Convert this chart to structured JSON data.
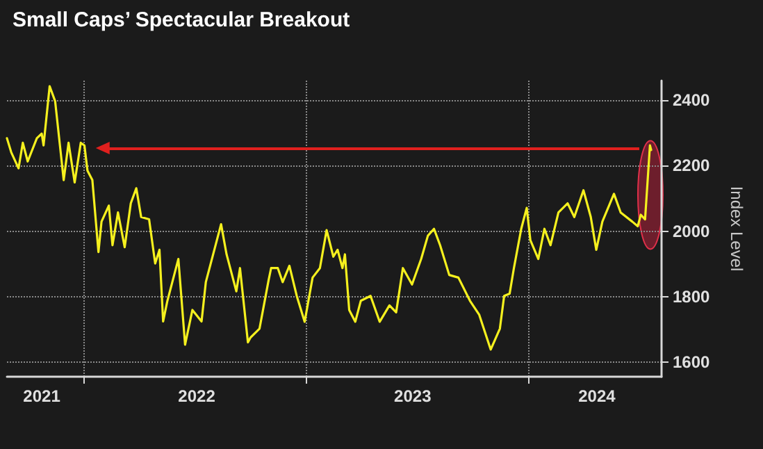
{
  "chart_data": {
    "type": "line",
    "title": "Small Caps’ Spectacular Breakout",
    "ylabel": "Index Level",
    "x": [
      "2021-08-29",
      "2021-09-05",
      "2021-09-17",
      "2021-09-24",
      "2021-10-02",
      "2021-10-17",
      "2021-10-25",
      "2021-10-28",
      "2021-11-07",
      "2021-11-16",
      "2021-11-30",
      "2021-12-08",
      "2021-12-18",
      "2021-12-28",
      "2022-01-03",
      "2022-01-08",
      "2022-01-16",
      "2022-01-26",
      "2022-01-31",
      "2022-02-12",
      "2022-02-18",
      "2022-02-27",
      "2022-03-10",
      "2022-03-20",
      "2022-03-29",
      "2022-04-06",
      "2022-04-19",
      "2022-04-29",
      "2022-05-06",
      "2022-05-12",
      "2022-05-19",
      "2022-06-06",
      "2022-06-17",
      "2022-06-29",
      "2022-07-14",
      "2022-07-21",
      "2022-08-15",
      "2022-08-24",
      "2022-09-09",
      "2022-09-15",
      "2022-09-28",
      "2022-10-02",
      "2022-10-17",
      "2022-11-01",
      "2022-11-05",
      "2022-11-16",
      "2022-11-24",
      "2022-12-05",
      "2022-12-17",
      "2022-12-30",
      "2023-01-12",
      "2023-01-24",
      "2023-02-04",
      "2023-02-15",
      "2023-02-22",
      "2023-03-02",
      "2023-03-06",
      "2023-03-13",
      "2023-03-23",
      "2023-04-01",
      "2023-04-17",
      "2023-05-02",
      "2023-05-18",
      "2023-05-29",
      "2023-06-09",
      "2023-06-24",
      "2023-07-09",
      "2023-07-20",
      "2023-07-30",
      "2023-08-09",
      "2023-08-24",
      "2023-09-08",
      "2023-09-27",
      "2023-10-12",
      "2023-10-31",
      "2023-11-15",
      "2023-11-22",
      "2023-12-01",
      "2023-12-08",
      "2023-12-20",
      "2023-12-29",
      "2024-01-04",
      "2024-01-17",
      "2024-01-27",
      "2024-02-06",
      "2024-02-19",
      "2024-03-05",
      "2024-03-16",
      "2024-03-31",
      "2024-04-12",
      "2024-04-21",
      "2024-05-01",
      "2024-05-20",
      "2024-05-31",
      "2024-06-19",
      "2024-06-28",
      "2024-07-03",
      "2024-07-10",
      "2024-07-18",
      "2024-07-20"
    ],
    "series": [
      {
        "color": "#f5f01e",
        "values": [
          2284,
          2241,
          2192,
          2270,
          2213,
          2284,
          2298,
          2262,
          2443,
          2397,
          2156,
          2270,
          2149,
          2270,
          2262,
          2185,
          2156,
          1936,
          2029,
          2078,
          1957,
          2057,
          1951,
          2085,
          2131,
          2043,
          2036,
          1901,
          1943,
          1724,
          1787,
          1915,
          1653,
          1759,
          1724,
          1844,
          2021,
          1929,
          1816,
          1887,
          1660,
          1674,
          1702,
          1851,
          1887,
          1887,
          1844,
          1894,
          1802,
          1723,
          1858,
          1887,
          2003,
          1922,
          1943,
          1887,
          1929,
          1759,
          1723,
          1787,
          1802,
          1723,
          1773,
          1752,
          1887,
          1837,
          1915,
          1986,
          2007,
          1957,
          1866,
          1858,
          1787,
          1745,
          1638,
          1702,
          1802,
          1809,
          1887,
          2007,
          2071,
          1972,
          1915,
          2007,
          1957,
          2057,
          2085,
          2043,
          2125,
          2043,
          1943,
          2029,
          2114,
          2057,
          2029,
          2015,
          2050,
          2036,
          2262,
          2248
        ]
      }
    ],
    "xlim": [
      "2021-08-29",
      "2024-08-06"
    ],
    "xticks": [
      {
        "value": "2021-10-25",
        "label": "2021"
      },
      {
        "value": "2022-01-01",
        "label": null
      },
      {
        "value": "2022-07-06",
        "label": "2022"
      },
      {
        "value": "2023-01-01",
        "label": null
      },
      {
        "value": "2023-06-25",
        "label": "2023"
      },
      {
        "value": "2024-01-01",
        "label": null
      },
      {
        "value": "2024-04-22",
        "label": "2024"
      }
    ],
    "ylim": [
      1555,
      2460
    ],
    "yticks": [
      1600,
      1800,
      2000,
      2200,
      2400
    ],
    "ref_lines": [
      {
        "axis": "y",
        "value": 2254,
        "color": "#e0201e"
      }
    ],
    "grid": true,
    "marker": "none",
    "line_style": "solid"
  }
}
